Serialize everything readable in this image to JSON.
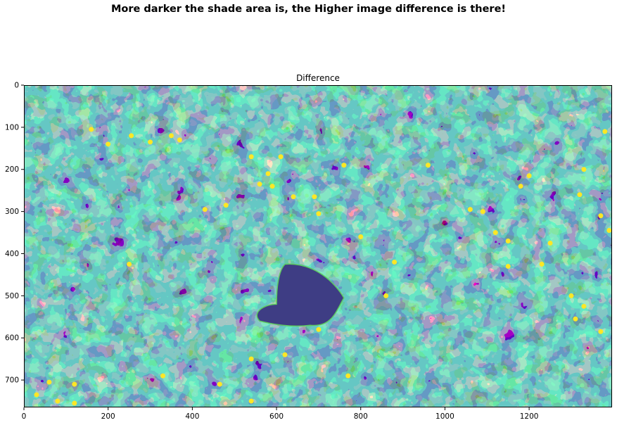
{
  "figure": {
    "suptitle": "More darker the shade area is, the Higher image difference is there!"
  },
  "chart_data": {
    "type": "heatmap",
    "title": "Difference",
    "xlabel": "",
    "ylabel": "",
    "colormap": "viridis",
    "xlim": [
      0,
      1397
    ],
    "ylim": [
      765,
      0
    ],
    "x_ticks": [
      0,
      200,
      400,
      600,
      800,
      1000,
      1200
    ],
    "y_ticks": [
      0,
      100,
      200,
      300,
      400,
      500,
      600,
      700
    ],
    "colors": {
      "low": "#440154",
      "mid_low": "#3b528b",
      "mid": "#21918c",
      "mid_high": "#5ec962",
      "high": "#fde725"
    }
  }
}
